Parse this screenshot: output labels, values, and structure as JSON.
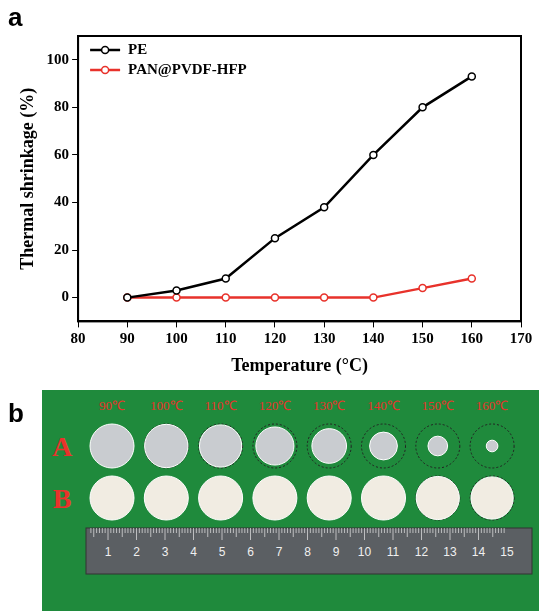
{
  "chart_data": {
    "panel": "a",
    "type": "line",
    "x_label": "Temperature (°C)",
    "y_label": "Thermal shrinkage (%)",
    "series": [
      {
        "name": "PE",
        "color": "#000000",
        "marker": "circle",
        "x": [
          90,
          100,
          110,
          120,
          130,
          140,
          150,
          160
        ],
        "values": [
          0,
          3,
          8,
          25,
          38,
          60,
          80,
          93
        ]
      },
      {
        "name": "PAN@PVDF-HFP",
        "color": "#e8322b",
        "marker": "circle",
        "x": [
          90,
          100,
          110,
          120,
          130,
          140,
          150,
          160
        ],
        "values": [
          0,
          0,
          0,
          0,
          0,
          0,
          4,
          8
        ]
      }
    ],
    "xlim": [
      80,
      170
    ],
    "xticks": [
      80,
      90,
      100,
      110,
      120,
      130,
      140,
      150,
      160,
      170
    ],
    "ylim": [
      -10,
      110
    ],
    "yticks": [
      0,
      20,
      40,
      60,
      80,
      100
    ],
    "grid": false,
    "legend": "upper left"
  },
  "photo": {
    "panel": "b",
    "temperatures": [
      "90℃",
      "100℃",
      "110℃",
      "120℃",
      "130℃",
      "140℃",
      "150℃",
      "160℃"
    ],
    "rows": [
      "A",
      "B"
    ],
    "ruler": [
      "1",
      "2",
      "3",
      "4",
      "5",
      "6",
      "7",
      "8",
      "9",
      "10",
      "11",
      "12",
      "13",
      "14",
      "15"
    ]
  }
}
